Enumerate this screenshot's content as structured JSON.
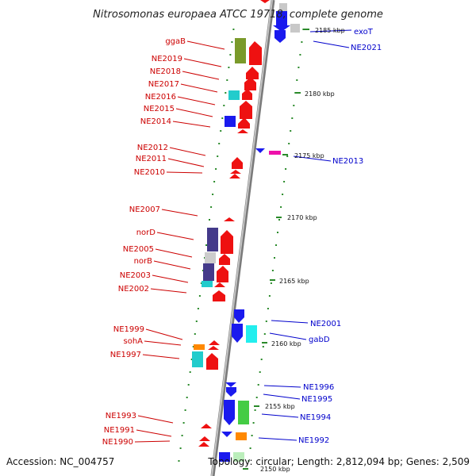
{
  "title": "Nitrosomonas europaea ATCC 19718, complete genome",
  "accession": "Accession: NC_004757",
  "topology": "Topology: circular; Length: 2,812,094 bp; Genes: 2,509",
  "colors": {
    "forward": "#ee1111",
    "reverse": "#1a1aee",
    "label_forward": "#cc0000",
    "label_reverse": "#0000cc",
    "backbone": "#999999",
    "tick": "#2a8a2a"
  },
  "ticks": [
    "2150 kbp",
    "2155 kbp",
    "2160 kbp",
    "2165 kbp",
    "2170 kbp",
    "2175 kbp",
    "2180 kbp",
    "2185 kbp"
  ],
  "forward_labels": [
    "ggaB",
    "NE2019",
    "NE2018",
    "NE2017",
    "NE2016",
    "NE2015",
    "NE2014",
    "NE2012",
    "NE2011",
    "NE2010",
    "NE2007",
    "norD",
    "NE2005",
    "norB",
    "NE2003",
    "NE2002",
    "NE1999",
    "sohA",
    "NE1997",
    "NE1993",
    "NE1991",
    "NE1990"
  ],
  "reverse_labels": [
    "exoT",
    "NE2021",
    "NE2013",
    "NE2001",
    "gabD",
    "NE1996",
    "NE1995",
    "NE1994",
    "NE1992"
  ]
}
